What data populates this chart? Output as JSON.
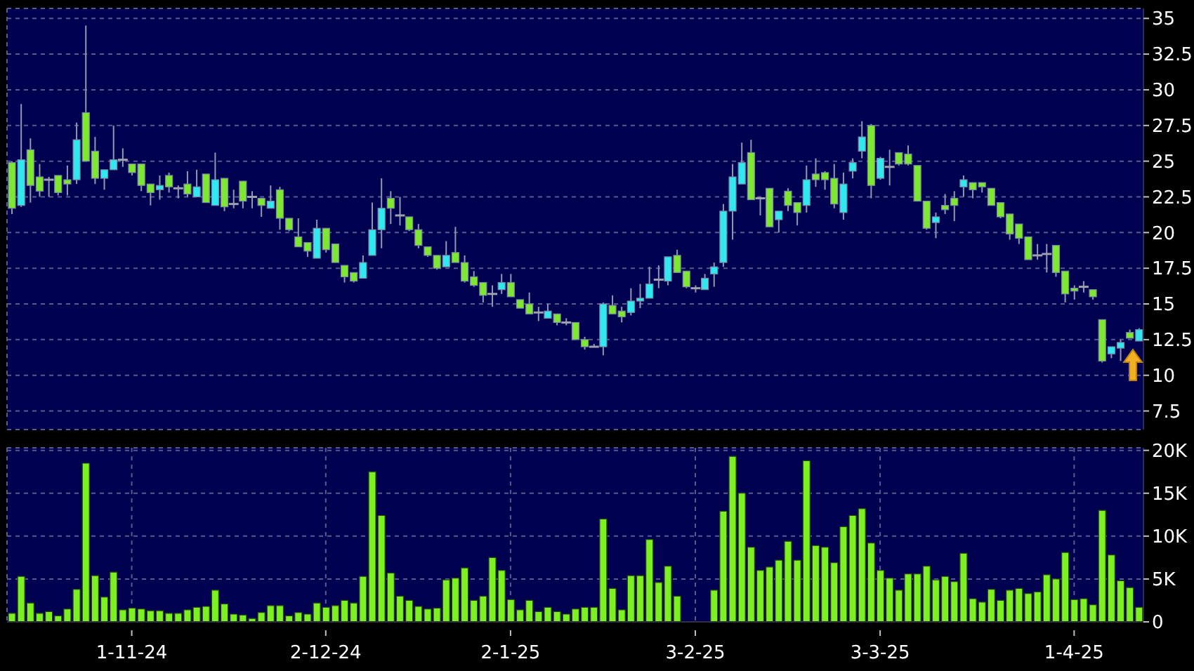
{
  "chart_data": [
    {
      "type": "candlestick",
      "categories": [
        null,
        null,
        null,
        null,
        null,
        null,
        null,
        null,
        null,
        null,
        null,
        null,
        null,
        null,
        null,
        null,
        null,
        null,
        null,
        null,
        null,
        null,
        null,
        null,
        null,
        null,
        null,
        null,
        null,
        null,
        null,
        null,
        null,
        null,
        null,
        null,
        null,
        null,
        null,
        null,
        null,
        null,
        null,
        null,
        null,
        null,
        null,
        null,
        null,
        null,
        null,
        null,
        null,
        null,
        null,
        null,
        null,
        null,
        null,
        null,
        null,
        null,
        null,
        null,
        null,
        null,
        null,
        null,
        null,
        null,
        null,
        null,
        null,
        null,
        null,
        null,
        null,
        null,
        null,
        null,
        null,
        null,
        null,
        null,
        null,
        null,
        null,
        null,
        null,
        null,
        null,
        null,
        null,
        null,
        null,
        null,
        null,
        null,
        null,
        null,
        null,
        null,
        null,
        null,
        null,
        null,
        null,
        null,
        null,
        null,
        null,
        null,
        null,
        null,
        null,
        null,
        null,
        null,
        null,
        null,
        null,
        null,
        null
      ],
      "ohlc": [
        [
          24.9,
          25.0,
          21.3,
          21.7
        ],
        [
          21.9,
          29.0,
          21.8,
          25.1
        ],
        [
          25.8,
          26.6,
          22.1,
          23.3
        ],
        [
          23.9,
          24.8,
          22.5,
          22.9
        ],
        [
          23.7,
          23.9,
          22.5,
          23.7
        ],
        [
          24.0,
          24.0,
          22.6,
          22.8
        ],
        [
          23.7,
          24.7,
          22.6,
          23.4
        ],
        [
          23.7,
          27.7,
          23.4,
          26.5
        ],
        [
          28.4,
          34.5,
          25.0,
          25.0
        ],
        [
          25.7,
          26.7,
          23.4,
          23.8
        ],
        [
          23.8,
          24.4,
          23.0,
          24.4
        ],
        [
          24.4,
          27.5,
          24.4,
          25.1
        ],
        [
          25.1,
          25.9,
          24.6,
          25.1
        ],
        [
          24.8,
          24.8,
          24.0,
          24.2
        ],
        [
          24.8,
          24.8,
          22.9,
          23.3
        ],
        [
          23.4,
          23.4,
          21.9,
          22.8
        ],
        [
          23.0,
          24.0,
          22.3,
          23.3
        ],
        [
          24.0,
          24.2,
          22.8,
          23.2
        ],
        [
          23.1,
          23.3,
          22.4,
          23.1
        ],
        [
          23.4,
          24.3,
          22.5,
          22.7
        ],
        [
          22.5,
          24.4,
          22.5,
          23.2
        ],
        [
          24.1,
          24.1,
          22.1,
          22.1
        ],
        [
          21.9,
          25.6,
          21.9,
          23.7
        ],
        [
          23.8,
          23.8,
          21.5,
          21.8
        ],
        [
          22.0,
          23.0,
          21.7,
          22.0
        ],
        [
          23.6,
          23.6,
          21.7,
          22.2
        ],
        [
          22.5,
          22.9,
          21.7,
          22.5
        ],
        [
          22.4,
          22.4,
          21.1,
          21.9
        ],
        [
          21.7,
          23.3,
          21.7,
          22.2
        ],
        [
          23.0,
          23.2,
          20.2,
          21.0
        ],
        [
          21.0,
          21.0,
          20.1,
          20.2
        ],
        [
          19.7,
          21.0,
          19.0,
          19.0
        ],
        [
          19.3,
          19.3,
          18.3,
          18.7
        ],
        [
          18.2,
          20.9,
          18.2,
          20.3
        ],
        [
          20.3,
          20.3,
          18.6,
          18.8
        ],
        [
          19.2,
          19.2,
          17.9,
          17.9
        ],
        [
          17.7,
          17.7,
          16.5,
          16.9
        ],
        [
          17.2,
          17.2,
          16.5,
          16.6
        ],
        [
          16.8,
          18.4,
          16.8,
          17.9
        ],
        [
          18.4,
          22.1,
          18.4,
          20.2
        ],
        [
          20.2,
          23.8,
          18.9,
          21.7
        ],
        [
          22.4,
          22.9,
          20.6,
          21.7
        ],
        [
          21.2,
          22.5,
          20.5,
          21.2
        ],
        [
          21.1,
          21.1,
          20.1,
          20.2
        ],
        [
          20.2,
          20.6,
          18.9,
          19.1
        ],
        [
          19.0,
          19.0,
          18.3,
          18.4
        ],
        [
          18.4,
          18.4,
          17.4,
          17.5
        ],
        [
          17.6,
          19.4,
          17.6,
          18.4
        ],
        [
          18.6,
          20.4,
          17.9,
          17.9
        ],
        [
          17.9,
          18.4,
          16.5,
          16.6
        ],
        [
          16.9,
          17.3,
          16.2,
          16.3
        ],
        [
          16.5,
          16.5,
          15.1,
          15.6
        ],
        [
          15.7,
          16.3,
          14.8,
          15.7
        ],
        [
          16.0,
          17.1,
          15.7,
          16.5
        ],
        [
          16.5,
          17.1,
          15.5,
          15.5
        ],
        [
          15.3,
          15.3,
          14.7,
          14.7
        ],
        [
          15.0,
          15.8,
          14.3,
          14.3
        ],
        [
          14.4,
          14.8,
          13.8,
          14.4
        ],
        [
          14.0,
          15.0,
          14.0,
          14.5
        ],
        [
          14.3,
          14.3,
          13.5,
          13.7
        ],
        [
          13.7,
          14.0,
          13.5,
          13.7
        ],
        [
          13.7,
          13.7,
          12.5,
          12.5
        ],
        [
          12.5,
          12.7,
          11.8,
          12.0
        ],
        [
          12.0,
          12.2,
          12.0,
          12.0
        ],
        [
          12.0,
          15.1,
          11.4,
          15.0
        ],
        [
          14.9,
          15.6,
          14.3,
          14.3
        ],
        [
          14.5,
          14.8,
          13.7,
          14.1
        ],
        [
          14.4,
          16.1,
          14.2,
          15.2
        ],
        [
          15.2,
          16.4,
          14.7,
          15.4
        ],
        [
          15.4,
          17.6,
          15.4,
          16.4
        ],
        [
          16.7,
          17.7,
          16.1,
          16.7
        ],
        [
          16.6,
          18.3,
          16.3,
          18.3
        ],
        [
          18.4,
          18.8,
          17.2,
          17.2
        ],
        [
          17.3,
          17.3,
          16.1,
          16.2
        ],
        [
          16.1,
          16.3,
          15.8,
          16.1
        ],
        [
          16.0,
          17.1,
          16.0,
          16.8
        ],
        [
          17.1,
          17.9,
          16.2,
          17.6
        ],
        [
          17.9,
          22.0,
          17.6,
          21.5
        ],
        [
          21.5,
          24.8,
          19.5,
          23.9
        ],
        [
          23.4,
          26.3,
          23.4,
          24.9
        ],
        [
          25.6,
          26.5,
          22.3,
          22.3
        ],
        [
          22.4,
          22.4,
          21.2,
          22.4
        ],
        [
          23.1,
          23.1,
          20.4,
          20.4
        ],
        [
          20.9,
          21.5,
          20.0,
          21.5
        ],
        [
          22.9,
          23.1,
          21.5,
          21.9
        ],
        [
          22.1,
          22.1,
          20.5,
          21.4
        ],
        [
          21.9,
          24.7,
          21.4,
          23.7
        ],
        [
          24.1,
          25.2,
          23.2,
          23.7
        ],
        [
          24.2,
          24.3,
          23.0,
          23.7
        ],
        [
          23.8,
          24.8,
          21.7,
          22.0
        ],
        [
          21.4,
          24.2,
          20.9,
          23.4
        ],
        [
          24.3,
          25.2,
          23.8,
          24.9
        ],
        [
          25.7,
          27.8,
          25.2,
          26.7
        ],
        [
          27.5,
          27.6,
          22.4,
          23.3
        ],
        [
          23.8,
          25.3,
          23.7,
          25.2
        ],
        [
          24.6,
          25.8,
          23.3,
          24.6
        ],
        [
          25.6,
          25.6,
          24.7,
          24.8
        ],
        [
          25.5,
          26.1,
          24.7,
          24.8
        ],
        [
          24.7,
          24.7,
          22.2,
          22.2
        ],
        [
          22.2,
          22.2,
          20.2,
          20.3
        ],
        [
          20.7,
          21.4,
          19.6,
          21.1
        ],
        [
          21.9,
          22.7,
          21.3,
          21.6
        ],
        [
          22.4,
          22.9,
          20.8,
          21.9
        ],
        [
          23.2,
          24.0,
          22.5,
          23.7
        ],
        [
          23.5,
          23.5,
          22.4,
          23.0
        ],
        [
          23.5,
          23.5,
          22.8,
          23.2
        ],
        [
          23.1,
          23.1,
          21.9,
          21.9
        ],
        [
          22.1,
          22.1,
          21.0,
          21.1
        ],
        [
          21.3,
          21.3,
          19.5,
          19.9
        ],
        [
          20.6,
          20.6,
          19.2,
          19.6
        ],
        [
          19.7,
          19.7,
          18.1,
          18.1
        ],
        [
          18.4,
          19.2,
          18.1,
          18.4
        ],
        [
          18.5,
          19.2,
          17.2,
          18.5
        ],
        [
          19.1,
          19.1,
          16.9,
          17.2
        ],
        [
          17.3,
          17.3,
          15.1,
          15.7
        ],
        [
          16.1,
          16.3,
          15.3,
          15.9
        ],
        [
          16.2,
          16.6,
          15.8,
          16.2
        ],
        [
          16.0,
          16.0,
          15.3,
          15.5
        ],
        [
          13.9,
          13.9,
          10.9,
          11.0
        ],
        [
          11.5,
          12.0,
          11.2,
          12.0
        ],
        [
          11.9,
          12.5,
          11.0,
          12.3
        ],
        [
          13.0,
          13.2,
          12.6,
          12.6
        ],
        [
          12.4,
          13.3,
          12.4,
          13.2
        ]
      ],
      "colors": [
        "#7ee830",
        "#30e8f0",
        "#7ee830",
        "#7ee830",
        "#a0a0b0",
        "#7ee830",
        "#7ee830",
        "#30e8f0",
        "#7ee830",
        "#7ee830",
        "#30e8f0",
        "#30e8f0",
        "#a0a0b0",
        "#7ee830",
        "#7ee830",
        "#7ee830",
        "#30e8f0",
        "#7ee830",
        "#a0a0b0",
        "#7ee830",
        "#30e8f0",
        "#7ee830",
        "#30e8f0",
        "#7ee830",
        "#a0a0b0",
        "#7ee830",
        "#a0a0b0",
        "#7ee830",
        "#30e8f0",
        "#7ee830",
        "#7ee830",
        "#7ee830",
        "#7ee830",
        "#30e8f0",
        "#7ee830",
        "#7ee830",
        "#7ee830",
        "#7ee830",
        "#30e8f0",
        "#30e8f0",
        "#30e8f0",
        "#7ee830",
        "#a0a0b0",
        "#7ee830",
        "#7ee830",
        "#7ee830",
        "#7ee830",
        "#30e8f0",
        "#7ee830",
        "#7ee830",
        "#7ee830",
        "#7ee830",
        "#a0a0b0",
        "#30e8f0",
        "#7ee830",
        "#7ee830",
        "#7ee830",
        "#a0a0b0",
        "#30e8f0",
        "#7ee830",
        "#a0a0b0",
        "#7ee830",
        "#7ee830",
        "#a0a0b0",
        "#30e8f0",
        "#7ee830",
        "#7ee830",
        "#30e8f0",
        "#30e8f0",
        "#30e8f0",
        "#a0a0b0",
        "#30e8f0",
        "#7ee830",
        "#7ee830",
        "#a0a0b0",
        "#30e8f0",
        "#30e8f0",
        "#30e8f0",
        "#30e8f0",
        "#30e8f0",
        "#7ee830",
        "#a0a0b0",
        "#7ee830",
        "#30e8f0",
        "#7ee830",
        "#7ee830",
        "#30e8f0",
        "#7ee830",
        "#7ee830",
        "#7ee830",
        "#30e8f0",
        "#30e8f0",
        "#30e8f0",
        "#7ee830",
        "#30e8f0",
        "#a0a0b0",
        "#7ee830",
        "#7ee830",
        "#7ee830",
        "#7ee830",
        "#30e8f0",
        "#7ee830",
        "#7ee830",
        "#30e8f0",
        "#7ee830",
        "#7ee830",
        "#7ee830",
        "#7ee830",
        "#7ee830",
        "#7ee830",
        "#7ee830",
        "#a0a0b0",
        "#a0a0b0",
        "#7ee830",
        "#7ee830",
        "#7ee830",
        "#a0a0b0",
        "#7ee830",
        "#7ee830",
        "#30e8f0",
        "#30e8f0",
        "#7ee830",
        "#30e8f0"
      ],
      "ylim": [
        6.2,
        35.7
      ],
      "yticks": [
        7.5,
        10,
        12.5,
        15,
        17.5,
        20,
        22.5,
        25,
        27.5,
        30,
        32.5,
        35
      ],
      "grid": true,
      "tick_labels": "y"
    },
    {
      "type": "bar",
      "categories": [
        null,
        null,
        null,
        null,
        null,
        null,
        null,
        null,
        null,
        null,
        null,
        null,
        null,
        "1-11-24",
        null,
        null,
        null,
        null,
        null,
        null,
        null,
        null,
        null,
        null,
        null,
        null,
        null,
        null,
        null,
        null,
        null,
        null,
        null,
        null,
        "2-12-24",
        null,
        null,
        null,
        null,
        null,
        null,
        null,
        null,
        null,
        null,
        null,
        null,
        null,
        null,
        null,
        null,
        null,
        null,
        null,
        "2-1-25",
        null,
        null,
        null,
        null,
        null,
        null,
        null,
        null,
        null,
        null,
        null,
        null,
        null,
        null,
        null,
        null,
        null,
        null,
        null,
        "3-2-25",
        null,
        null,
        null,
        null,
        null,
        null,
        null,
        null,
        null,
        null,
        null,
        null,
        null,
        null,
        null,
        null,
        null,
        null,
        null,
        "3-3-25",
        null,
        null,
        null,
        null,
        null,
        null,
        null,
        null,
        null,
        null,
        null,
        null,
        null,
        null,
        null,
        null,
        null,
        null,
        null,
        null,
        "1-4-25",
        null,
        null,
        null,
        null,
        null,
        null,
        null
      ],
      "values": [
        1000,
        5300,
        2200,
        1000,
        1200,
        700,
        1500,
        3800,
        18500,
        5400,
        2900,
        5800,
        1400,
        1600,
        1500,
        1300,
        1300,
        1000,
        1000,
        1400,
        1700,
        1800,
        3700,
        2100,
        900,
        800,
        400,
        1100,
        1900,
        1900,
        700,
        1100,
        900,
        2200,
        1700,
        1900,
        2500,
        2200,
        5300,
        17500,
        12400,
        5700,
        3000,
        2500,
        1800,
        1500,
        1600,
        4900,
        5100,
        6300,
        2500,
        3000,
        7500,
        6000,
        2600,
        1400,
        2500,
        1200,
        1700,
        1200,
        900,
        1500,
        1700,
        1700,
        12000,
        3900,
        1400,
        5400,
        5400,
        9600,
        4600,
        6500,
        3000,
        0,
        0,
        0,
        3700,
        12900,
        19300,
        15000,
        8700,
        6000,
        6400,
        7200,
        9400,
        7200,
        18800,
        8900,
        8700,
        6900,
        11100,
        12400,
        13200,
        9200,
        6000,
        5100,
        3700,
        5600,
        5600,
        6500,
        4900,
        5300,
        4700,
        8000,
        2700,
        2300,
        3800,
        2500,
        3700,
        3900,
        3300,
        3500,
        5500,
        5000,
        8100,
        2600,
        2700,
        2000,
        13000,
        7800,
        4800,
        4000,
        1700
      ],
      "color": "#7cf020",
      "ylim": [
        0,
        20300
      ],
      "yticks": [
        0,
        {
          "value": 5000,
          "label": "5K"
        },
        {
          "value": 10000,
          "label": "10K"
        },
        {
          "value": 15000,
          "label": "15K"
        },
        {
          "value": 20000,
          "label": "20K"
        }
      ],
      "grid": true
    }
  ]
}
